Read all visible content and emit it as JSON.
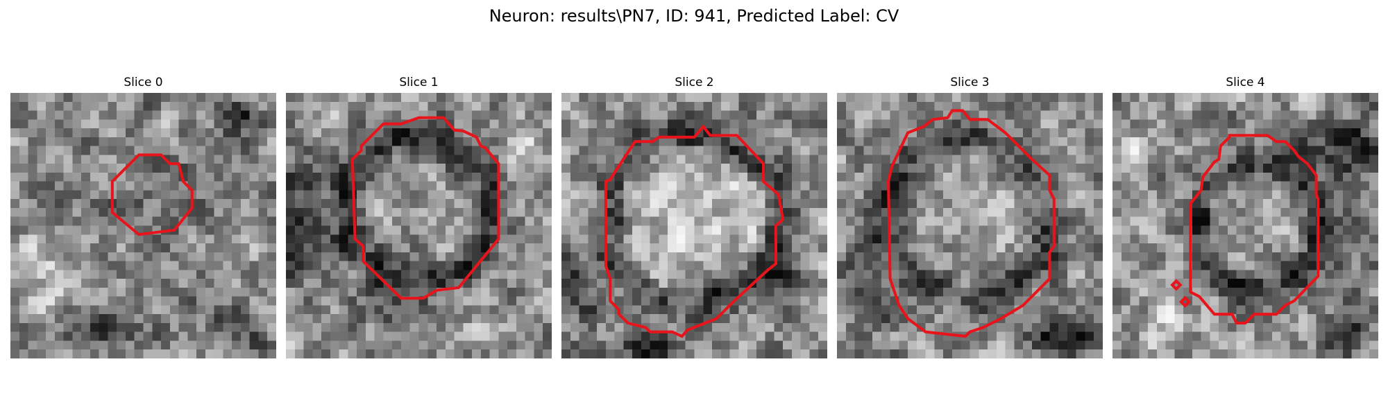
{
  "figure": {
    "title": "Neuron: results\\PN7, ID: 941, Predicted Label: CV"
  },
  "colors": {
    "contour": "#e8141c",
    "background": "#ffffff",
    "image_colormap": "grayscale"
  },
  "panels": [
    {
      "title": "Slice 0",
      "image_icon": "grayscale-em-slice-image",
      "contour_shape": "small-octagon"
    },
    {
      "title": "Slice 1",
      "image_icon": "grayscale-em-slice-image",
      "contour_shape": "large-octagon"
    },
    {
      "title": "Slice 2",
      "image_icon": "grayscale-em-slice-image",
      "contour_shape": "large-octagon"
    },
    {
      "title": "Slice 3",
      "image_icon": "grayscale-em-slice-image",
      "contour_shape": "large-octagon"
    },
    {
      "title": "Slice 4",
      "image_icon": "grayscale-em-slice-image",
      "contour_shape": "octagon-with-two-small-markers"
    }
  ]
}
